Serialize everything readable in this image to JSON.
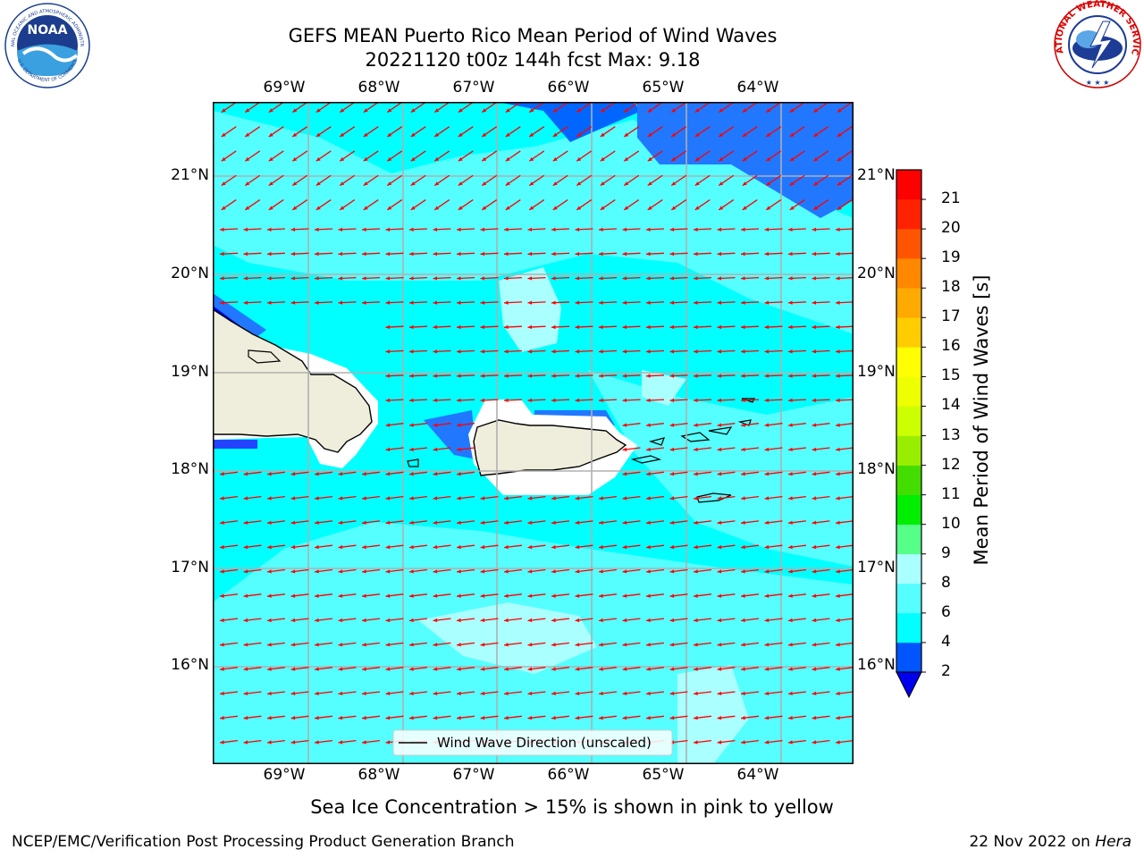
{
  "title_line1": "GEFS MEAN Puerto Rico Mean Period of Wind Waves",
  "title_line2": "20221120 t00z 144h fcst   Max: 9.18",
  "logos": {
    "noaa_text": "NOAA",
    "noaa_ring": "NATIONAL OCEANIC AND ATMOSPHERIC ADMINISTRATION",
    "noaa_ring_bottom": "U.S. DEPARTMENT OF COMMERCE",
    "nws_ring": "NATIONAL WEATHER SERVICE"
  },
  "map": {
    "lon_labels": [
      "69°W",
      "68°W",
      "67°W",
      "66°W",
      "65°W",
      "64°W"
    ],
    "lat_labels": [
      "21°N",
      "20°N",
      "19°N",
      "18°N",
      "17°N",
      "16°N"
    ],
    "legend_label": "Wind Wave Direction (unscaled)",
    "arrow_color": "#ff0000",
    "land_color": "#efeedc"
  },
  "colorbar": {
    "label": "Mean Period of Wind Waves [s]",
    "ticks": [
      "2",
      "4",
      "6",
      "8",
      "9",
      "10",
      "11",
      "12",
      "13",
      "14",
      "15",
      "16",
      "17",
      "18",
      "19",
      "20",
      "21"
    ],
    "colors": [
      "#0055ff",
      "#00ffff",
      "#55ffff",
      "#aaffff",
      "#55ff88",
      "#00ee00",
      "#44dd00",
      "#99ee00",
      "#ccff00",
      "#eeff00",
      "#ffff00",
      "#ffcc00",
      "#ffaa00",
      "#ff8800",
      "#ff5500",
      "#ff2200",
      "#ff0000"
    ],
    "under_color": "#0000ee"
  },
  "caption": "Sea Ice Concentration > 15% is shown in pink to yellow",
  "footer_left": "NCEP/EMC/Verification Post Processing Product Generation Branch",
  "footer_right_prefix": "22 Nov 2022 on ",
  "footer_right_machine": "Hera"
}
